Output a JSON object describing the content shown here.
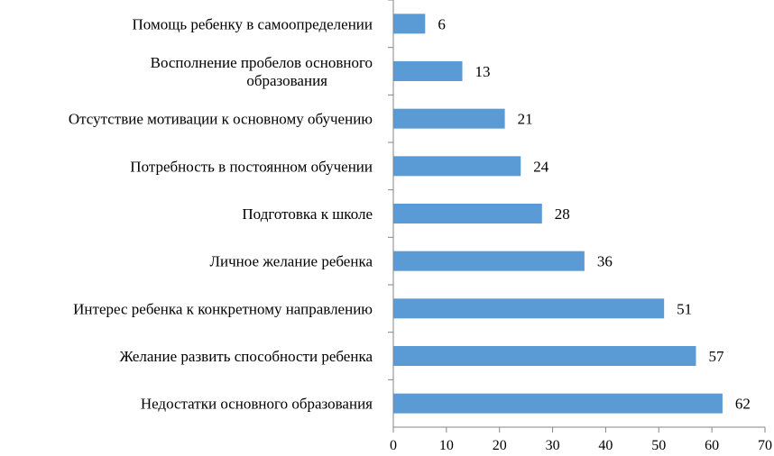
{
  "chart_data": {
    "type": "bar",
    "orientation": "horizontal",
    "categories": [
      "Помощь ребенку в самоопределении",
      "Восполнение пробелов основного образования",
      "Отсутствие мотивации к основному обучению",
      "Потребность в постоянном обучении",
      "Подготовка к школе",
      "Личное желание ребенка",
      "Интерес ребенка к конкретному направлению",
      "Желание развить способности ребенка",
      "Недостатки основного образования"
    ],
    "category_lines": [
      [
        "Помощь ребенку в самоопределении"
      ],
      [
        "Восполнение пробелов основного",
        "образования"
      ],
      [
        "Отсутствие мотивации к основному обучению"
      ],
      [
        "Потребность в постоянном обучении"
      ],
      [
        "Подготовка к школе"
      ],
      [
        "Личное желание ребенка"
      ],
      [
        "Интерес ребенка к конкретному направлению"
      ],
      [
        "Желание развить способности ребенка"
      ],
      [
        "Недостатки основного образования"
      ]
    ],
    "values": [
      6,
      13,
      21,
      24,
      28,
      36,
      51,
      57,
      62
    ],
    "data_labels": [
      "6",
      "13",
      "21",
      "24",
      "28",
      "36",
      "51",
      "57",
      "62"
    ],
    "xlim": [
      0,
      70
    ],
    "x_ticks": [
      "0",
      "10",
      "20",
      "30",
      "40",
      "50",
      "60",
      "70"
    ],
    "title": "",
    "xlabel": "",
    "ylabel": "",
    "bar_color": "#5B9BD5",
    "grid": false,
    "legend": "none"
  }
}
